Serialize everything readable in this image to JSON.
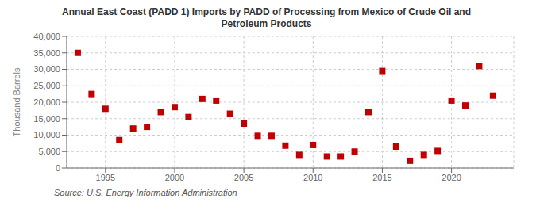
{
  "chart_data": {
    "type": "scatter",
    "title": "Annual East Coast (PADD 1) Imports by PADD of Processing from Mexico of Crude Oil and\nPetroleum Products",
    "ylabel": "Thousand Barrels",
    "annotations": [
      "Source: U.S. Energy Information Administration"
    ],
    "x": [
      1993,
      1994,
      1995,
      1996,
      1997,
      1998,
      1999,
      2000,
      2001,
      2002,
      2003,
      2004,
      2005,
      2006,
      2007,
      2008,
      2009,
      2010,
      2011,
      2012,
      2013,
      2014,
      2015,
      2016,
      2017,
      2018,
      2019,
      2020,
      2021,
      2022,
      2023
    ],
    "values": [
      35000,
      22500,
      18000,
      8500,
      12000,
      12500,
      17000,
      18500,
      15500,
      21000,
      20500,
      16500,
      13500,
      9800,
      9800,
      6800,
      4000,
      7000,
      3500,
      3500,
      5000,
      17000,
      29500,
      6500,
      2200,
      4000,
      5200,
      20500,
      19000,
      31000,
      22000
    ],
    "color": "#c00000",
    "marker": "square",
    "grid": true,
    "xlim": [
      1992.2,
      2024.5
    ],
    "xticks": [
      1995,
      2000,
      2005,
      2010,
      2015,
      2020
    ],
    "ylim": [
      0,
      40000
    ],
    "yticks": [
      0,
      {
        "value": 5000,
        "label": "5,000"
      },
      {
        "value": 10000,
        "label": "10,000"
      },
      {
        "value": 15000,
        "label": "15,000"
      },
      {
        "value": 20000,
        "label": "20,000"
      },
      {
        "value": 25000,
        "label": "25,000"
      },
      {
        "value": 30000,
        "label": "30,000"
      },
      {
        "value": 35000,
        "label": "35,000"
      },
      {
        "value": 40000,
        "label": "40,000"
      }
    ]
  }
}
